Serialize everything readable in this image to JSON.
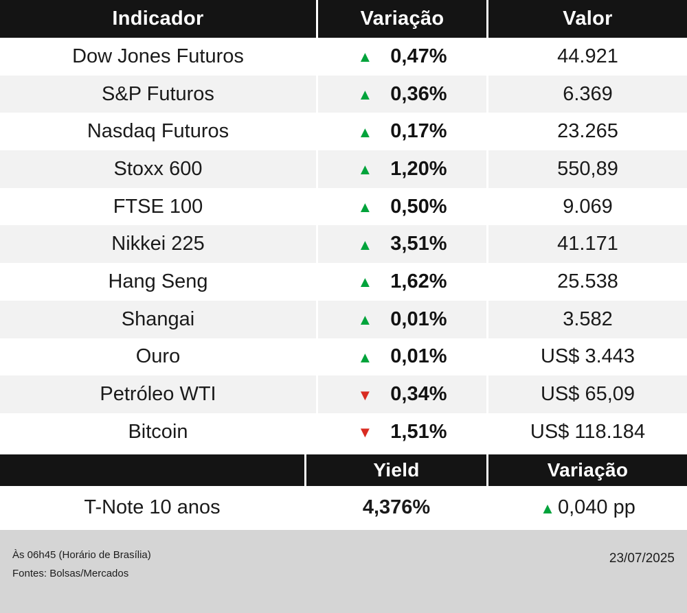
{
  "chart_data": {
    "type": "table",
    "columns": [
      "Indicador",
      "Variação",
      "Valor"
    ],
    "rows": [
      {
        "indicator": "Dow Jones Futuros",
        "direction": "up",
        "variation": "0,47%",
        "value": "44.921"
      },
      {
        "indicator": "S&P Futuros",
        "direction": "up",
        "variation": "0,36%",
        "value": "6.369"
      },
      {
        "indicator": "Nasdaq Futuros",
        "direction": "up",
        "variation": "0,17%",
        "value": "23.265"
      },
      {
        "indicator": "Stoxx 600",
        "direction": "up",
        "variation": "1,20%",
        "value": "550,89"
      },
      {
        "indicator": "FTSE 100",
        "direction": "up",
        "variation": "0,50%",
        "value": "9.069"
      },
      {
        "indicator": "Nikkei 225",
        "direction": "up",
        "variation": "3,51%",
        "value": "41.171"
      },
      {
        "indicator": "Hang Seng",
        "direction": "up",
        "variation": "1,62%",
        "value": "25.538"
      },
      {
        "indicator": "Shangai",
        "direction": "up",
        "variation": "0,01%",
        "value": "3.582"
      },
      {
        "indicator": "Ouro",
        "direction": "up",
        "variation": "0,01%",
        "value": "US$ 3.443"
      },
      {
        "indicator": "Petróleo WTI",
        "direction": "down",
        "variation": "0,34%",
        "value": "US$ 65,09"
      },
      {
        "indicator": "Bitcoin",
        "direction": "down",
        "variation": "1,51%",
        "value": "US$ 118.184"
      }
    ],
    "bond_table": {
      "columns": [
        "",
        "Yield",
        "Variação"
      ],
      "rows": [
        {
          "indicator": "T-Note 10 anos",
          "yield": "4,376%",
          "direction": "up",
          "variation": "0,040 pp"
        }
      ]
    }
  },
  "glyphs": {
    "up": "▲",
    "down": "▼"
  },
  "footer": {
    "time_note": "Às 06h45 (Horário de Brasília)",
    "sources": "Fontes: Bolsas/Mercados",
    "date": "23/07/2025"
  },
  "colors": {
    "up_green": "#00A33B",
    "down_red": "#D92B21",
    "header_bg": "#141414",
    "row_alt_bg": "#F2F2F2",
    "footer_bg": "#D5D5D5"
  }
}
